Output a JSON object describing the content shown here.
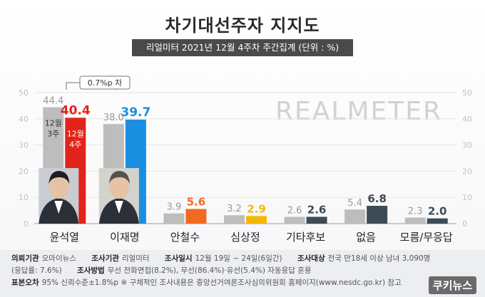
{
  "title": "차기대선주자 지지도",
  "subtitle": "리얼미터 2021년 12월 4주차 주간집계 (단위 : %)",
  "watermark": "REALMETER",
  "annotation": "0.7%p 차",
  "chart_data": {
    "type": "bar",
    "ylim": [
      0,
      50
    ],
    "yticks": [
      "0",
      "10",
      "20",
      "30",
      "40",
      "50"
    ],
    "categories": [
      "윤석열",
      "이재명",
      "안철수",
      "심상정",
      "기타후보",
      "없음",
      "모름/무응답"
    ],
    "series": [
      {
        "name": "12월 3주",
        "values": [
          44.4,
          38.0,
          3.9,
          3.2,
          2.6,
          5.4,
          2.3
        ],
        "labels": [
          "44.4",
          "38.0",
          "3.9",
          "3.2",
          "2.6",
          "5.4",
          "2.3"
        ]
      },
      {
        "name": "12월 4주",
        "values": [
          40.4,
          39.7,
          5.6,
          2.9,
          2.6,
          6.8,
          2.0
        ],
        "labels": [
          "40.4",
          "39.7",
          "5.6",
          "2.9",
          "2.6",
          "6.8",
          "2.0"
        ]
      }
    ],
    "series_label_lines": [
      [
        "12월",
        "3주"
      ],
      [
        "12월",
        "4주"
      ]
    ],
    "colors": {
      "prev": "#bdbdbd",
      "curr": [
        "#e2231a",
        "#1a8fe0",
        "#f26a21",
        "#f5b800",
        "#3e4b57",
        "#3e4b57",
        "#3e4b57"
      ],
      "curr_label": [
        "#e2231a",
        "#1a8fe0",
        "#f26a21",
        "#f5b800",
        "#3e4b57",
        "#3e4b57",
        "#3e4b57"
      ],
      "prev_label": "#999999"
    },
    "grid": true
  },
  "footer": {
    "row1": [
      {
        "k": "의뢰기관",
        "v": "오마이뉴스"
      },
      {
        "k": "조사기관",
        "v": "리얼미터"
      },
      {
        "k": "조사일시",
        "v": "12월 19일 ~ 24일(6일간)"
      },
      {
        "k": "조사대상",
        "v": "전국 만18세 이상 남녀 3,090명"
      }
    ],
    "row2_pre": "(응답률: 7.6%)",
    "row2": {
      "k": "조사방법",
      "v": "무선 전화면접(8.2%), 무선(86.4%)·유선(5.4%) 자동응답 혼용"
    },
    "row3": {
      "k": "표본오차",
      "v": "95% 신뢰수준±1.8%p ※ 구체적인 조사내용은 중앙선거여론조사심의위원회 홈페이지(www.nesdc.go.kr) 참고"
    },
    "logo": "쿠키뉴스"
  }
}
